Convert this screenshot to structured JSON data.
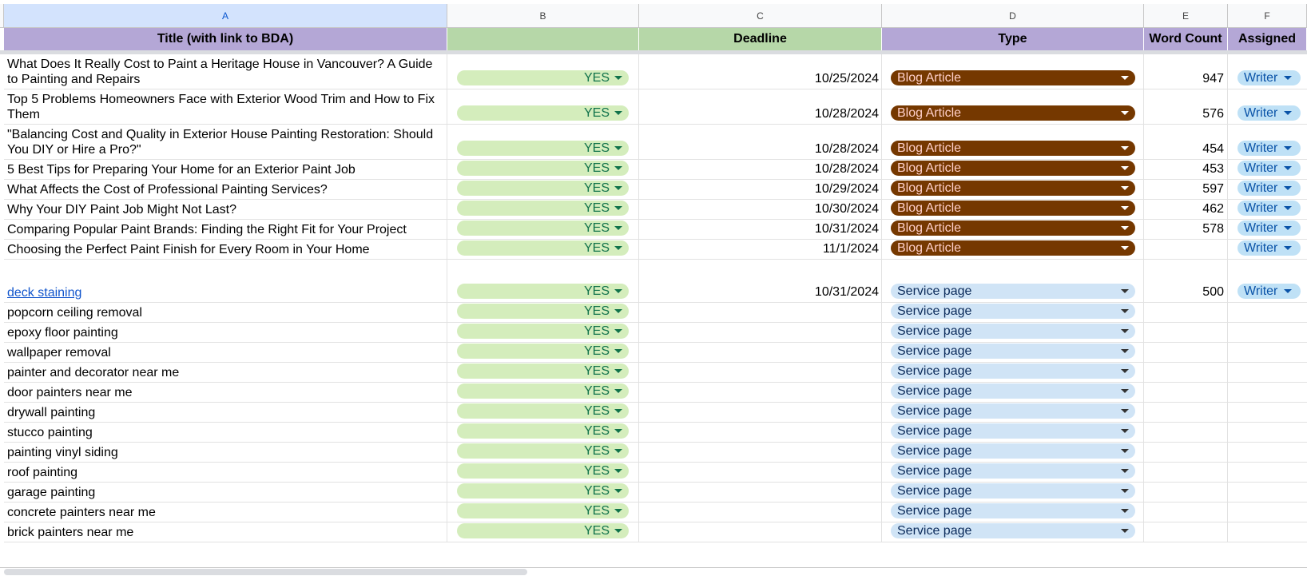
{
  "column_letters": [
    "A",
    "B",
    "C",
    "D",
    "E",
    "F"
  ],
  "header": {
    "title": "Title (with link to BDA)",
    "b": "",
    "deadline": "Deadline",
    "type": "Type",
    "word_count": "Word Count",
    "assigned": "Assigned"
  },
  "colors": {
    "header_purple": "#b4a7d6",
    "header_green": "#b6d7a8",
    "yes_chip": "#d4edbc",
    "blog_chip": "#753800",
    "service_chip": "#d0e4f6",
    "writer_chip": "#bfe1f6"
  },
  "rows": [
    {
      "title": "What Does It Really Cost to Paint a Heritage House in Vancouver? A Guide to Painting and Repairs",
      "link": false,
      "status": "YES",
      "deadline": "10/25/2024",
      "type": "Blog Article",
      "word_count": "947",
      "assigned": "Writer",
      "tall": true
    },
    {
      "title": "Top 5 Problems Homeowners Face with Exterior Wood Trim and How to Fix Them",
      "link": false,
      "status": "YES",
      "deadline": "10/28/2024",
      "type": "Blog Article",
      "word_count": "576",
      "assigned": "Writer",
      "tall": true
    },
    {
      "title": "\"Balancing Cost and Quality in Exterior House Painting Restoration: Should You DIY or Hire a Pro?\"",
      "link": false,
      "status": "YES",
      "deadline": "10/28/2024",
      "type": "Blog Article",
      "word_count": "454",
      "assigned": "Writer",
      "tall": true
    },
    {
      "title": "5 Best Tips for Preparing Your Home for an Exterior Paint Job",
      "link": false,
      "status": "YES",
      "deadline": "10/28/2024",
      "type": "Blog Article",
      "word_count": "453",
      "assigned": "Writer"
    },
    {
      "title": "What Affects the Cost of Professional Painting Services?",
      "link": false,
      "status": "YES",
      "deadline": "10/29/2024",
      "type": "Blog Article",
      "word_count": "597",
      "assigned": "Writer"
    },
    {
      "title": "Why Your DIY Paint Job Might Not Last?",
      "link": false,
      "status": "YES",
      "deadline": "10/30/2024",
      "type": "Blog Article",
      "word_count": "462",
      "assigned": "Writer"
    },
    {
      "title": "Comparing Popular Paint Brands: Finding the Right Fit for Your Project",
      "link": false,
      "status": "YES",
      "deadline": "10/31/2024",
      "type": "Blog Article",
      "word_count": "578",
      "assigned": "Writer"
    },
    {
      "title": "Choosing the Perfect Paint Finish for Every Room in Your Home",
      "link": false,
      "status": "YES",
      "deadline": "11/1/2024",
      "type": "Blog Article",
      "word_count": "",
      "assigned": "Writer"
    },
    {
      "title": "deck staining",
      "link": true,
      "status": "YES",
      "deadline": "10/31/2024",
      "type": "Service page",
      "word_count": "500",
      "assigned": "Writer",
      "xtall": true
    },
    {
      "title": "popcorn ceiling removal",
      "link": false,
      "status": "YES",
      "deadline": "",
      "type": "Service page",
      "word_count": "",
      "assigned": ""
    },
    {
      "title": "epoxy floor painting",
      "link": false,
      "status": "YES",
      "deadline": "",
      "type": "Service page",
      "word_count": "",
      "assigned": ""
    },
    {
      "title": "wallpaper removal",
      "link": false,
      "status": "YES",
      "deadline": "",
      "type": "Service page",
      "word_count": "",
      "assigned": ""
    },
    {
      "title": "painter and decorator near me",
      "link": false,
      "status": "YES",
      "deadline": "",
      "type": "Service page",
      "word_count": "",
      "assigned": ""
    },
    {
      "title": "door painters near me",
      "link": false,
      "status": "YES",
      "deadline": "",
      "type": "Service page",
      "word_count": "",
      "assigned": ""
    },
    {
      "title": "drywall painting",
      "link": false,
      "status": "YES",
      "deadline": "",
      "type": "Service page",
      "word_count": "",
      "assigned": ""
    },
    {
      "title": "stucco painting",
      "link": false,
      "status": "YES",
      "deadline": "",
      "type": "Service page",
      "word_count": "",
      "assigned": ""
    },
    {
      "title": "painting vinyl siding",
      "link": false,
      "status": "YES",
      "deadline": "",
      "type": "Service page",
      "word_count": "",
      "assigned": ""
    },
    {
      "title": "roof painting",
      "link": false,
      "status": "YES",
      "deadline": "",
      "type": "Service page",
      "word_count": "",
      "assigned": ""
    },
    {
      "title": "garage painting",
      "link": false,
      "status": "YES",
      "deadline": "",
      "type": "Service page",
      "word_count": "",
      "assigned": ""
    },
    {
      "title": "concrete painters near me",
      "link": false,
      "status": "YES",
      "deadline": "",
      "type": "Service page",
      "word_count": "",
      "assigned": ""
    },
    {
      "title": "brick painters near me",
      "link": false,
      "status": "YES",
      "deadline": "",
      "type": "Service page",
      "word_count": "",
      "assigned": ""
    }
  ]
}
